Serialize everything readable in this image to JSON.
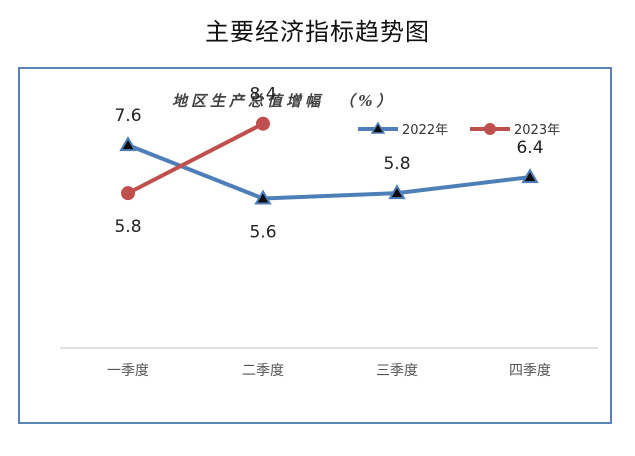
{
  "page": {
    "title": "主要经济指标趋势图"
  },
  "chart_data": {
    "type": "line",
    "title": "地区生产总值增幅",
    "title_unit": "（%）",
    "categories": [
      "一季度",
      "二季度",
      "三季度",
      "四季度"
    ],
    "series": [
      {
        "name": "2022年",
        "color": "#4f7fb8",
        "marker": "triangle",
        "values": [
          7.6,
          5.6,
          5.8,
          6.4
        ]
      },
      {
        "name": "2023年",
        "color": "#c0504d",
        "marker": "circle",
        "values": [
          5.8,
          8.4,
          null,
          null
        ]
      }
    ],
    "ylim": [
      0,
      10
    ],
    "legend_position": "top-right",
    "grid": false
  }
}
